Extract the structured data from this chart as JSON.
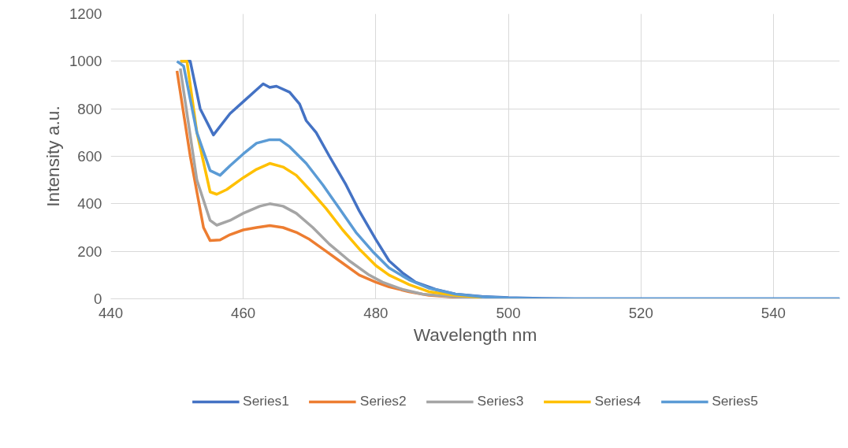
{
  "chart_data": {
    "type": "line",
    "xlabel": "Wavelength nm",
    "ylabel": "Intensity a.u.",
    "xlim": [
      440,
      550
    ],
    "xticks": [
      440,
      460,
      480,
      500,
      520,
      540
    ],
    "ylim": [
      0,
      1200
    ],
    "yticks": [
      0,
      200,
      400,
      600,
      800,
      1000,
      1200
    ],
    "grid": true,
    "legend": "bottom",
    "marker": "none",
    "line_style": "solid",
    "series": [
      {
        "name": "Series1",
        "color": "#4472c4",
        "x": [
          450.5,
          452,
          453.5,
          455.5,
          458,
          460,
          462,
          463,
          464,
          465,
          467,
          468.5,
          469.5,
          471,
          473,
          475.5,
          477.5,
          480,
          482,
          484,
          486,
          489,
          492,
          496,
          500,
          505,
          510,
          550
        ],
        "values": [
          1000,
          1000,
          800,
          690,
          780,
          830,
          880,
          905,
          890,
          895,
          870,
          820,
          750,
          700,
          600,
          480,
          370,
          250,
          160,
          110,
          70,
          40,
          20,
          10,
          5,
          2,
          0,
          0
        ]
      },
      {
        "name": "Series2",
        "color": "#ed7d31",
        "x": [
          450,
          452,
          454,
          455,
          456.5,
          458,
          460,
          462,
          464,
          466,
          468,
          470,
          472.5,
          475,
          477.5,
          480,
          482,
          485,
          488,
          492,
          496
        ],
        "values": [
          960,
          600,
          300,
          245,
          248,
          270,
          290,
          300,
          308,
          300,
          280,
          250,
          200,
          150,
          100,
          70,
          50,
          30,
          15,
          7,
          3
        ]
      },
      {
        "name": "Series3",
        "color": "#a5a5a5",
        "x": [
          450.5,
          453,
          455,
          456,
          458,
          460,
          462.5,
          464,
          466,
          468,
          470.5,
          473,
          476,
          479,
          481,
          484,
          487,
          491,
          496
        ],
        "values": [
          970,
          500,
          330,
          310,
          330,
          360,
          390,
          400,
          390,
          360,
          300,
          230,
          160,
          100,
          70,
          40,
          20,
          10,
          4
        ]
      },
      {
        "name": "Series4",
        "color": "#ffc000",
        "x": [
          450.5,
          451.5,
          453,
          455,
          456,
          457.5,
          460,
          462,
          464,
          466,
          468,
          470,
          472.5,
          475,
          477.5,
          480,
          482,
          485,
          488,
          492,
          496
        ],
        "values": [
          1000,
          1000,
          700,
          450,
          440,
          460,
          510,
          545,
          570,
          555,
          520,
          460,
          380,
          290,
          210,
          140,
          100,
          60,
          30,
          15,
          6
        ]
      },
      {
        "name": "Series5",
        "color": "#5b9bd5",
        "x": [
          450,
          451,
          453,
          455,
          456.5,
          458,
          460,
          462,
          464,
          465.5,
          467,
          469.5,
          472,
          474.5,
          477,
          479.5,
          482,
          485,
          488,
          492,
          496,
          500,
          505,
          550
        ],
        "values": [
          1000,
          980,
          700,
          540,
          520,
          560,
          610,
          655,
          670,
          670,
          640,
          570,
          480,
          380,
          280,
          200,
          130,
          80,
          45,
          20,
          8,
          3,
          0,
          0
        ]
      }
    ]
  }
}
